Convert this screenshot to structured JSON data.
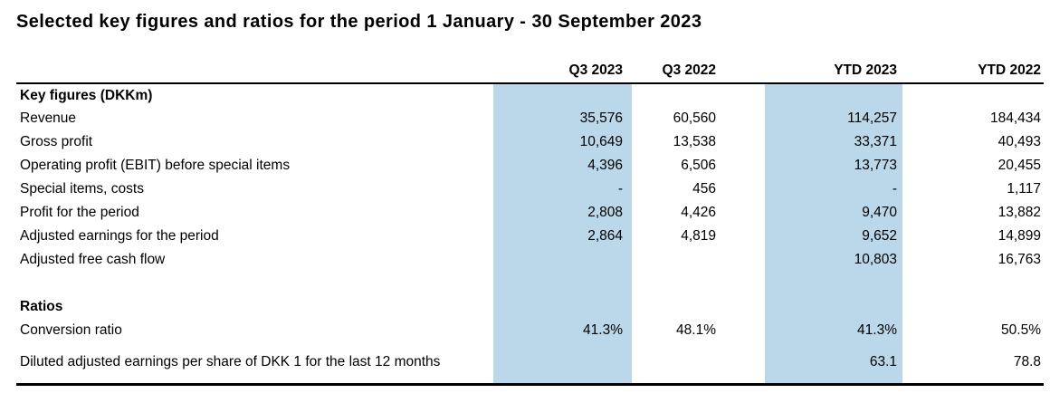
{
  "title": "Selected key figures and ratios for the period 1 January - 30 September 2023",
  "colors": {
    "highlight_column": "#bbd8ea",
    "rule": "#000000",
    "text": "#000000"
  },
  "table": {
    "columns": [
      "Q3 2023",
      "Q3 2022",
      "YTD 2023",
      "YTD 2022"
    ],
    "highlighted_columns": [
      "Q3 2023",
      "YTD 2023"
    ],
    "sections": [
      {
        "header": "Key figures (DKKm)",
        "rows": [
          {
            "label": "Revenue",
            "values": [
              "35,576",
              "60,560",
              "114,257",
              "184,434"
            ]
          },
          {
            "label": "Gross profit",
            "values": [
              "10,649",
              "13,538",
              "33,371",
              "40,493"
            ]
          },
          {
            "label": "Operating profit (EBIT) before special items",
            "values": [
              "4,396",
              "6,506",
              "13,773",
              "20,455"
            ]
          },
          {
            "label": "Special items, costs",
            "values": [
              "-",
              "456",
              "-",
              "1,117"
            ]
          },
          {
            "label": "Profit for the period",
            "values": [
              "2,808",
              "4,426",
              "9,470",
              "13,882"
            ]
          },
          {
            "label": "Adjusted earnings for the period",
            "values": [
              "2,864",
              "4,819",
              "9,652",
              "14,899"
            ]
          },
          {
            "label": "Adjusted free cash flow",
            "values": [
              "",
              "",
              "10,803",
              "16,763"
            ]
          }
        ]
      },
      {
        "header": "Ratios",
        "rows": [
          {
            "label": "Conversion ratio",
            "values": [
              "41.3%",
              "48.1%",
              "41.3%",
              "50.5%"
            ]
          },
          {
            "label": "Diluted adjusted earnings per share of DKK 1 for the last 12 months",
            "values": [
              "",
              "",
              "63.1",
              "78.8"
            ]
          }
        ]
      }
    ]
  }
}
